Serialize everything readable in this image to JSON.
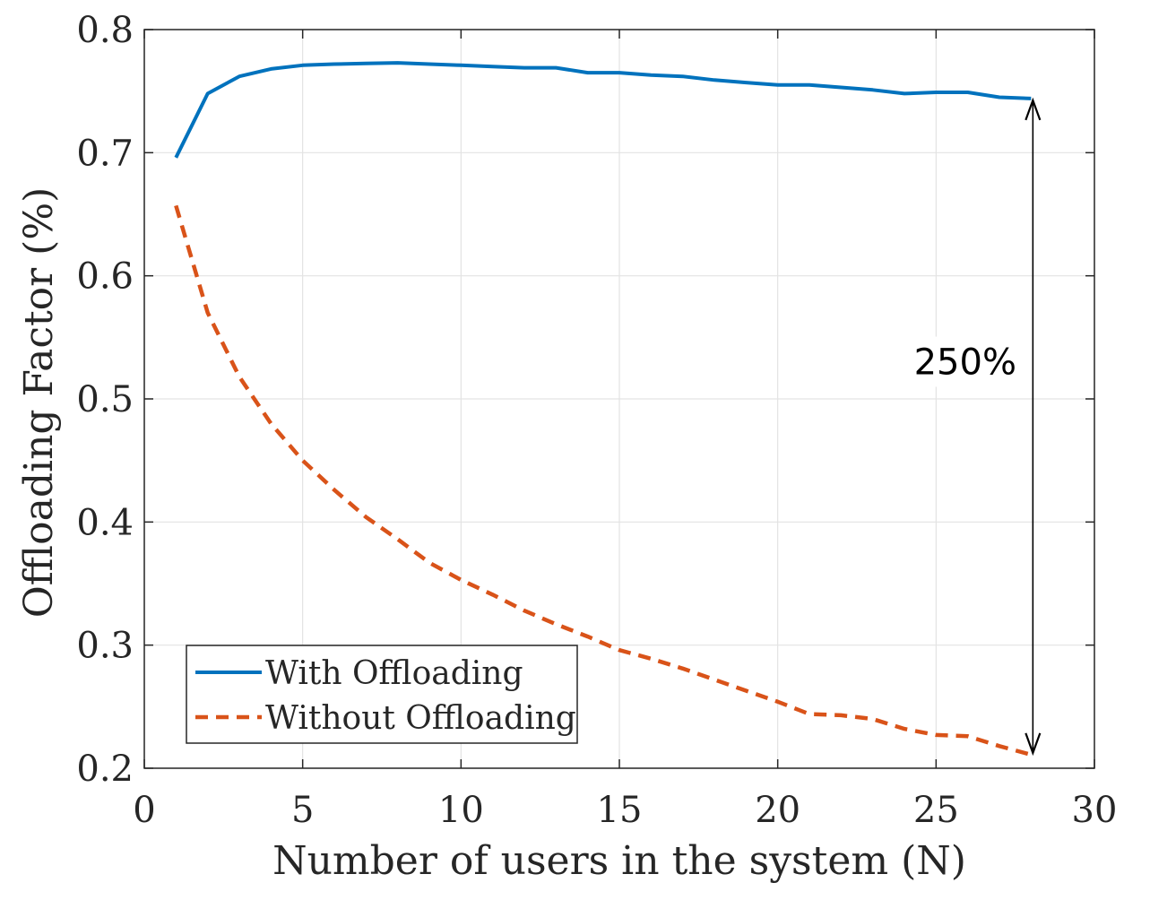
{
  "chart_data": {
    "type": "line",
    "xlabel": "Number of users in the system (N)",
    "ylabel": "Offloading Factor (%)",
    "xlim": [
      0,
      30
    ],
    "ylim": [
      0.2,
      0.8
    ],
    "xticks": [
      0,
      5,
      10,
      15,
      20,
      25,
      30
    ],
    "yticks": [
      0.2,
      0.3,
      0.4,
      0.5,
      0.6,
      0.7,
      0.8
    ],
    "xtick_labels": [
      "0",
      "5",
      "10",
      "15",
      "20",
      "25",
      "30"
    ],
    "ytick_labels": [
      "0.2",
      "0.3",
      "0.4",
      "0.5",
      "0.6",
      "0.7",
      "0.8"
    ],
    "grid": true,
    "legend_position": "bottom-left",
    "series": [
      {
        "name": "With Offloading",
        "color": "#0072BD",
        "style": "solid",
        "x": [
          1,
          2,
          3,
          4,
          5,
          6,
          7,
          8,
          9,
          10,
          11,
          12,
          13,
          14,
          15,
          16,
          17,
          18,
          19,
          20,
          21,
          22,
          23,
          24,
          25,
          26,
          27,
          28
        ],
        "y": [
          0.696,
          0.748,
          0.762,
          0.768,
          0.771,
          0.772,
          0.7725,
          0.773,
          0.772,
          0.771,
          0.77,
          0.769,
          0.769,
          0.765,
          0.765,
          0.763,
          0.762,
          0.759,
          0.757,
          0.755,
          0.755,
          0.753,
          0.751,
          0.748,
          0.749,
          0.749,
          0.745,
          0.744
        ]
      },
      {
        "name": "Without Offloading",
        "color": "#D95319",
        "style": "dashed",
        "x": [
          1,
          2,
          3,
          4,
          5,
          6,
          7,
          8,
          9,
          10,
          11,
          12,
          13,
          14,
          15,
          16,
          17,
          18,
          19,
          20,
          21,
          22,
          23,
          24,
          25,
          26,
          27,
          28
        ],
        "y": [
          0.657,
          0.57,
          0.518,
          0.48,
          0.45,
          0.426,
          0.404,
          0.386,
          0.367,
          0.353,
          0.341,
          0.328,
          0.317,
          0.307,
          0.296,
          0.289,
          0.281,
          0.272,
          0.263,
          0.254,
          0.244,
          0.243,
          0.24,
          0.232,
          0.227,
          0.226,
          0.218,
          0.211
        ]
      }
    ],
    "annotations": [
      {
        "text": "250%",
        "x": 28,
        "y_from": 0.211,
        "y_to": 0.744,
        "arrow": "double"
      }
    ]
  }
}
